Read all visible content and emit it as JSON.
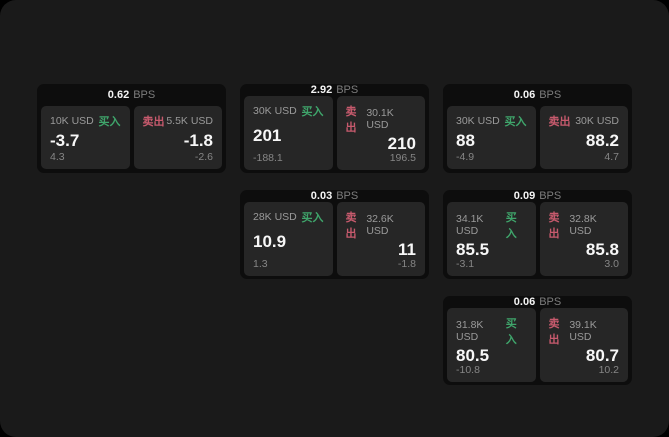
{
  "labels": {
    "bps": "BPS",
    "buy": "买入",
    "sell": "卖出"
  },
  "colors": {
    "buy": "#3fa56b",
    "sell": "#c75a6d",
    "window_bg": "#1a1a1a",
    "card_bg": "#0d0d0d",
    "panel_bg": "#262626"
  },
  "cards": [
    {
      "bps": "0.62",
      "buy": {
        "amount": "10K USD",
        "price": "-3.7",
        "delta": "4.3"
      },
      "sell": {
        "amount": "5.5K USD",
        "price": "-1.8",
        "delta": "-2.6"
      }
    },
    {
      "bps": "2.92",
      "buy": {
        "amount": "30K USD",
        "price": "201",
        "delta": "-188.1"
      },
      "sell": {
        "amount": "30.1K USD",
        "price": "210",
        "delta": "196.5"
      }
    },
    {
      "bps": "0.06",
      "buy": {
        "amount": "30K USD",
        "price": "88",
        "delta": "-4.9"
      },
      "sell": {
        "amount": "30K USD",
        "price": "88.2",
        "delta": "4.7"
      }
    },
    {
      "bps": "0.03",
      "buy": {
        "amount": "28K USD",
        "price": "10.9",
        "delta": "1.3"
      },
      "sell": {
        "amount": "32.6K USD",
        "price": "11",
        "delta": "-1.8"
      }
    },
    {
      "bps": "0.09",
      "buy": {
        "amount": "34.1K USD",
        "price": "85.5",
        "delta": "-3.1"
      },
      "sell": {
        "amount": "32.8K USD",
        "price": "85.8",
        "delta": "3.0"
      }
    },
    {
      "bps": "0.06",
      "buy": {
        "amount": "31.8K USD",
        "price": "80.5",
        "delta": "-10.8"
      },
      "sell": {
        "amount": "39.1K USD",
        "price": "80.7",
        "delta": "10.2"
      }
    }
  ]
}
